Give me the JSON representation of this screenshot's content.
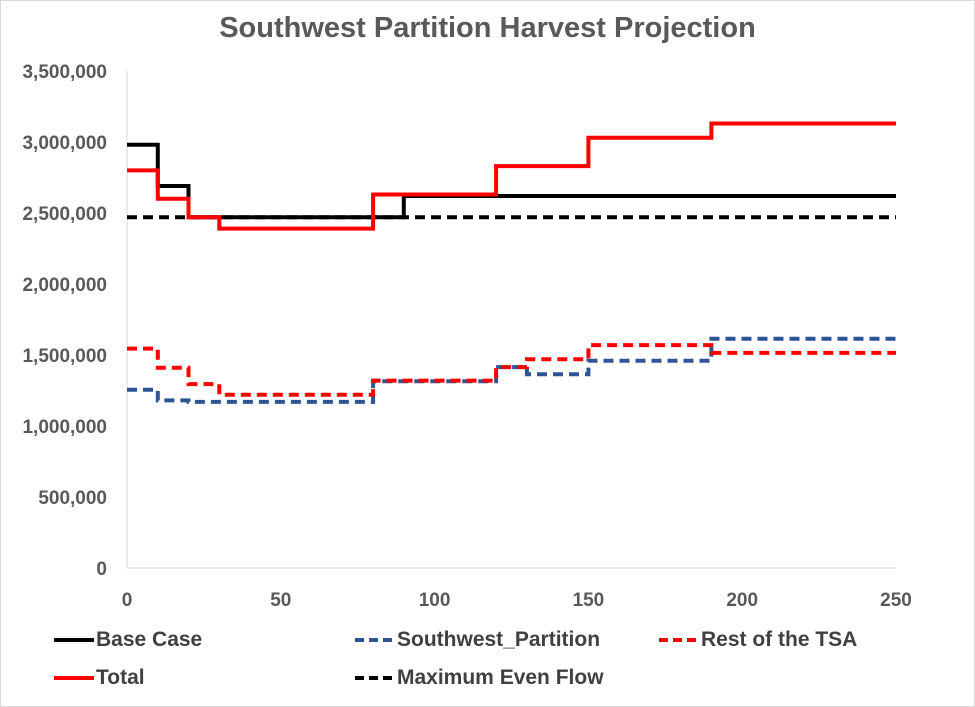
{
  "chart_data": {
    "type": "line",
    "title": "Southwest Partition Harvest Projection",
    "xlabel": "",
    "ylabel": "",
    "xlim": [
      0,
      250
    ],
    "ylim": [
      0,
      3500000
    ],
    "x_ticks": [
      0,
      50,
      100,
      150,
      200,
      250
    ],
    "y_ticks": [
      0,
      500000,
      1000000,
      1500000,
      2000000,
      2500000,
      3000000,
      3500000
    ],
    "x_tick_labels": [
      "0",
      "50",
      "100",
      "150",
      "200",
      "250"
    ],
    "y_tick_labels": [
      "0",
      "500,000",
      "1,000,000",
      "1,500,000",
      "2,000,000",
      "2,500,000",
      "3,000,000",
      "3,500,000"
    ],
    "grid": false,
    "legend_position": "bottom",
    "series": [
      {
        "name": "Base Case",
        "color": "#000000",
        "style": "solid",
        "x": [
          0,
          10,
          10,
          20,
          20,
          90,
          90,
          250
        ],
        "y": [
          2980000,
          2980000,
          2690000,
          2690000,
          2470000,
          2470000,
          2620000,
          2620000
        ]
      },
      {
        "name": "Southwest_Partition",
        "color": "#2f5597",
        "style": "dashed",
        "x": [
          0,
          10,
          10,
          20,
          20,
          80,
          80,
          120,
          120,
          130,
          130,
          150,
          150,
          190,
          190,
          250
        ],
        "y": [
          1255000,
          1255000,
          1180000,
          1180000,
          1170000,
          1170000,
          1315000,
          1315000,
          1415000,
          1415000,
          1365000,
          1365000,
          1460000,
          1460000,
          1615000,
          1615000
        ]
      },
      {
        "name": "Rest of the TSA",
        "color": "#ff0000",
        "style": "dashed",
        "x": [
          0,
          10,
          10,
          20,
          20,
          30,
          30,
          80,
          80,
          120,
          120,
          130,
          130,
          150,
          150,
          190,
          190,
          250
        ],
        "y": [
          1545000,
          1545000,
          1410000,
          1410000,
          1295000,
          1295000,
          1220000,
          1220000,
          1320000,
          1320000,
          1415000,
          1415000,
          1470000,
          1470000,
          1570000,
          1570000,
          1515000,
          1515000
        ]
      },
      {
        "name": "Total",
        "color": "#ff0000",
        "style": "solid",
        "x": [
          0,
          10,
          10,
          20,
          20,
          30,
          30,
          80,
          80,
          120,
          120,
          150,
          150,
          190,
          190,
          250
        ],
        "y": [
          2800000,
          2800000,
          2600000,
          2600000,
          2470000,
          2470000,
          2390000,
          2390000,
          2630000,
          2630000,
          2830000,
          2830000,
          3030000,
          3030000,
          3130000,
          3130000
        ]
      },
      {
        "name": "Maximum Even Flow",
        "color": "#000000",
        "style": "dashed",
        "x": [
          0,
          250
        ],
        "y": [
          2470000,
          2470000
        ]
      }
    ]
  },
  "legend": {
    "items": [
      {
        "label": "Base Case",
        "color": "#000000",
        "style": "solid"
      },
      {
        "label": "Southwest_Partition",
        "color": "#2f5597",
        "style": "dashed"
      },
      {
        "label": "Rest of the TSA",
        "color": "#ff0000",
        "style": "dashed"
      },
      {
        "label": "Total",
        "color": "#ff0000",
        "style": "solid"
      },
      {
        "label": "Maximum Even Flow",
        "color": "#000000",
        "style": "dashed"
      }
    ]
  }
}
